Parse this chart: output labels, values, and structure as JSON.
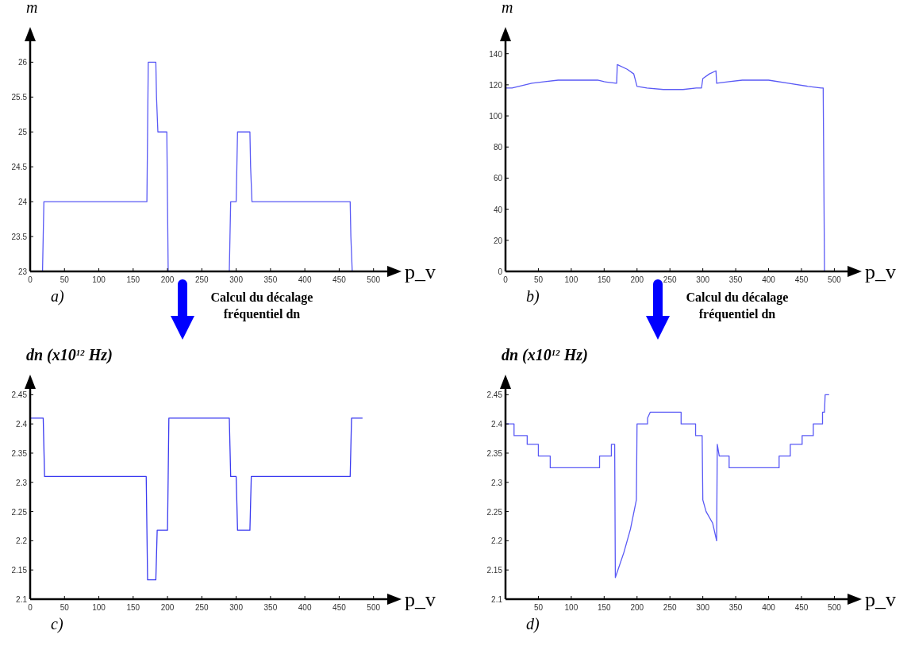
{
  "chart_data": [
    {
      "type": "line",
      "xlabel": "p_v",
      "ylabel": "m",
      "annotations": [
        "a)"
      ],
      "xlim": [
        0,
        520
      ],
      "ylim": [
        23,
        26.3
      ],
      "xticks": [
        0,
        50,
        100,
        150,
        200,
        250,
        300,
        350,
        400,
        450,
        500
      ],
      "yticks": [
        23,
        23.5,
        24,
        24.5,
        25,
        25.5,
        26
      ],
      "marker": "none",
      "line_style": "solid",
      "series": [
        {
          "color": "#5a5af5",
          "x": [
            0,
            18,
            19,
            20,
            170,
            171,
            172,
            183,
            184,
            186,
            199,
            200,
            201,
            290,
            291,
            292,
            300,
            301,
            302,
            320,
            321,
            323,
            466,
            467,
            469
          ],
          "values": [
            23,
            23,
            23.5,
            24,
            24,
            25,
            26,
            26,
            25.5,
            25,
            25,
            24,
            23,
            23,
            23.5,
            24,
            24,
            24.5,
            25,
            25,
            24.5,
            24,
            24,
            23.5,
            23
          ]
        }
      ]
    },
    {
      "type": "line",
      "xlabel": "p_v",
      "ylabel": "m",
      "annotations": [
        "b)"
      ],
      "xlim": [
        0,
        520
      ],
      "ylim": [
        0,
        148
      ],
      "xticks": [
        0,
        50,
        100,
        150,
        200,
        250,
        300,
        350,
        400,
        450,
        500
      ],
      "yticks": [
        0,
        20,
        40,
        60,
        80,
        100,
        120,
        140
      ],
      "marker": "none",
      "line_style": "solid",
      "series": [
        {
          "color": "#5a5af5",
          "x": [
            1,
            10,
            20,
            40,
            60,
            80,
            140,
            150,
            168,
            169,
            170,
            185,
            195,
            200,
            215,
            240,
            270,
            290,
            298,
            300,
            310,
            320,
            321,
            340,
            360,
            400,
            430,
            460,
            480,
            483,
            484,
            485
          ],
          "values": [
            118,
            118,
            119,
            121,
            122,
            123,
            123,
            122,
            121,
            121,
            133,
            130,
            127,
            119,
            118,
            117,
            117,
            118,
            118,
            124,
            127,
            129,
            121,
            122,
            123,
            123,
            121,
            119,
            118,
            118,
            60,
            0
          ]
        }
      ]
    },
    {
      "type": "line",
      "xlabel": "p_v",
      "ylabel": "dn (x10$^{12}$ Hz)",
      "annotations": [
        "Calcul du décalage fréquentiel dn",
        "c)"
      ],
      "xlim": [
        0,
        520
      ],
      "ylim": [
        2.1,
        2.46
      ],
      "xticks": [
        0,
        50,
        100,
        150,
        200,
        250,
        300,
        350,
        400,
        450,
        500
      ],
      "yticks": [
        2.1,
        2.15,
        2.2,
        2.25,
        2.3,
        2.35,
        2.4,
        2.45
      ],
      "marker": "none",
      "line_style": "solid",
      "series": [
        {
          "color": "#3a3af0",
          "x": [
            0,
            19,
            20,
            21,
            169,
            170,
            171,
            183,
            184,
            185,
            200,
            201,
            202,
            290,
            291,
            292,
            300,
            301,
            302,
            320,
            321,
            322,
            466,
            467,
            468,
            484
          ],
          "values": [
            2.41,
            2.41,
            2.36,
            2.31,
            2.31,
            2.22,
            2.133,
            2.133,
            2.175,
            2.218,
            2.218,
            2.31,
            2.41,
            2.41,
            2.36,
            2.31,
            2.31,
            2.265,
            2.218,
            2.218,
            2.265,
            2.31,
            2.31,
            2.36,
            2.41,
            2.41
          ]
        }
      ]
    },
    {
      "type": "line",
      "xlabel": "p_v",
      "ylabel": "dn (x10$^{12}$ Hz)",
      "annotations": [
        "Calcul du décalage fréquentiel dn",
        "d)"
      ],
      "xlim": [
        0,
        520
      ],
      "ylim": [
        2.1,
        2.46
      ],
      "xticks": [
        50,
        100,
        150,
        200,
        250,
        300,
        350,
        400,
        450,
        500
      ],
      "yticks": [
        2.1,
        2.15,
        2.2,
        2.25,
        2.3,
        2.35,
        2.4,
        2.45
      ],
      "marker": "none",
      "line_style": "solid",
      "series": [
        {
          "color": "#5a5af5",
          "x": [
            0,
            13,
            13,
            33,
            33,
            50,
            50,
            68,
            68,
            143,
            143,
            161,
            161,
            166,
            167,
            180,
            190,
            199,
            200,
            216,
            216,
            220,
            267,
            267,
            289,
            289,
            299,
            300,
            305,
            315,
            321,
            322,
            325,
            340,
            340,
            416,
            416,
            433,
            433,
            451,
            451,
            468,
            468,
            482,
            482,
            485,
            486,
            492
          ],
          "values": [
            2.4,
            2.4,
            2.38,
            2.38,
            2.365,
            2.365,
            2.345,
            2.345,
            2.325,
            2.325,
            2.345,
            2.345,
            2.365,
            2.365,
            2.137,
            2.18,
            2.22,
            2.27,
            2.4,
            2.4,
            2.41,
            2.42,
            2.42,
            2.4,
            2.4,
            2.38,
            2.38,
            2.27,
            2.25,
            2.23,
            2.2,
            2.365,
            2.345,
            2.345,
            2.325,
            2.325,
            2.345,
            2.345,
            2.365,
            2.365,
            2.38,
            2.38,
            2.4,
            2.4,
            2.42,
            2.42,
            2.45,
            2.45
          ]
        }
      ]
    }
  ]
}
